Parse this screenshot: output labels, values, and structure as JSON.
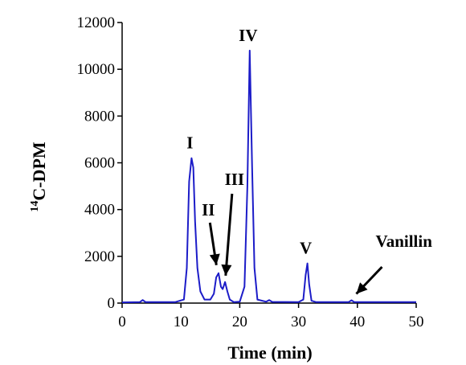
{
  "chart_data": {
    "type": "line",
    "title": "",
    "xlabel": "Time (min)",
    "ylabel_superscript": "14",
    "ylabel_main": "C-DPM",
    "xlim": [
      0,
      50
    ],
    "ylim": [
      0,
      12000
    ],
    "xticks": [
      0,
      10,
      20,
      30,
      40,
      50
    ],
    "yticks": [
      0,
      2000,
      4000,
      6000,
      8000,
      10000,
      12000
    ],
    "grid": false,
    "legend": "none",
    "line_color": "#1c1cc8",
    "series": [
      {
        "x": [
          0,
          3.0,
          3.5,
          4.0,
          9.0,
          10.5,
          11.0,
          11.4,
          11.8,
          12.1,
          12.4,
          12.8,
          13.3,
          14.0,
          15.0,
          15.6,
          16.0,
          16.4,
          16.8,
          17.1,
          17.5,
          17.9,
          18.3,
          19.0,
          20.0,
          20.8,
          21.3,
          21.7,
          22.1,
          22.5,
          23.0,
          24.5,
          25.0,
          25.5,
          30.0,
          30.8,
          31.2,
          31.5,
          31.8,
          32.2,
          33.0,
          38.5,
          39.0,
          39.5,
          50
        ],
        "y": [
          30,
          40,
          130,
          40,
          40,
          150,
          1500,
          5200,
          6200,
          5800,
          3500,
          1500,
          500,
          150,
          150,
          400,
          1100,
          1280,
          700,
          600,
          900,
          500,
          150,
          40,
          60,
          700,
          5000,
          10800,
          5800,
          1500,
          150,
          60,
          130,
          50,
          40,
          150,
          1200,
          1700,
          800,
          100,
          40,
          40,
          120,
          40,
          40
        ]
      }
    ],
    "annotations": [
      {
        "text": "I",
        "x": 11.8,
        "y": 6200
      },
      {
        "text": "II",
        "x": 16.3,
        "y": 1280
      },
      {
        "text": "III",
        "x": 17.6,
        "y": 900
      },
      {
        "text": "IV",
        "x": 21.7,
        "y": 10800
      },
      {
        "text": "V",
        "x": 31.5,
        "y": 1700
      },
      {
        "text": "Vanillin",
        "x": 39.0,
        "y": 120,
        "color": "#e00000"
      }
    ]
  }
}
